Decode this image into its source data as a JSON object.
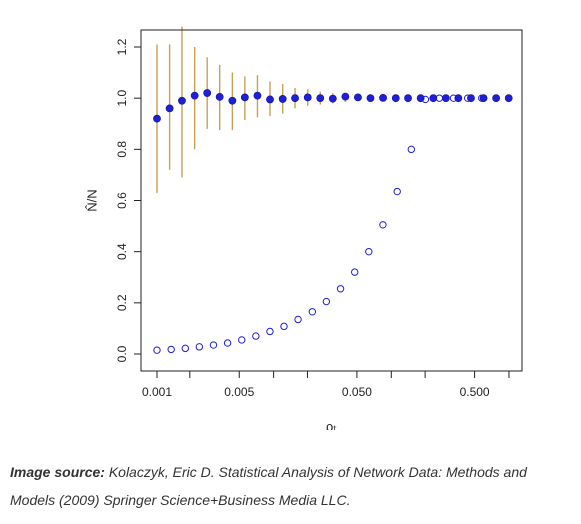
{
  "chart_data": {
    "type": "scatter",
    "title": "",
    "xlabel": "ρₜ",
    "ylabel": "N̂/N",
    "x_scale": "log",
    "xlim": [
      0.001,
      1.0
    ],
    "ylim": [
      0.0,
      1.25
    ],
    "x_ticks": [
      0.001,
      0.005,
      0.05,
      0.5
    ],
    "x_tick_labels": [
      "0.001",
      "0.005",
      "0.050",
      "0.500"
    ],
    "x_minor_ticks": [
      0.0019,
      0.0098,
      0.019,
      0.098,
      0.19,
      0.98
    ],
    "y_ticks": [
      0.0,
      0.2,
      0.4,
      0.6,
      0.8,
      1.0,
      1.2
    ],
    "y_tick_labels": [
      "0.0",
      "0.2",
      "0.4",
      "0.6",
      "0.8",
      "1.0",
      "1.2"
    ],
    "grid": false,
    "legend": "none",
    "colors": {
      "points": "#1f1fd6",
      "error_bars": "#c8a054",
      "axis": "#222222"
    },
    "series": [
      {
        "marker": "filled-circle",
        "x": [
          0.001,
          0.00128,
          0.00163,
          0.00209,
          0.00267,
          0.00341,
          0.00437,
          0.00558,
          0.00714,
          0.00913,
          0.0117,
          0.0149,
          0.0191,
          0.0244,
          0.0312,
          0.0399,
          0.051,
          0.0652,
          0.0834,
          0.107,
          0.136,
          0.174,
          0.223,
          0.285,
          0.364,
          0.466,
          0.596,
          0.762,
          0.975
        ],
        "y": [
          0.92,
          0.96,
          0.99,
          1.01,
          1.02,
          1.005,
          0.99,
          1.003,
          1.01,
          0.995,
          0.997,
          1.0,
          1.003,
          1.0,
          0.998,
          1.006,
          1.003,
          1.0,
          1.001,
          1.0,
          1.0,
          1.0,
          1.0,
          1.0,
          1.0,
          1.0,
          1.0,
          1.0,
          1.0
        ],
        "y_low": [
          0.63,
          0.72,
          0.69,
          0.8,
          0.88,
          0.875,
          0.875,
          0.915,
          0.925,
          0.93,
          0.94,
          0.96,
          0.97,
          0.975,
          0.98,
          0.985,
          0.99,
          0.99,
          0.993,
          0.995,
          0.997,
          0.997,
          0.998,
          0.998,
          0.999,
          0.999,
          1.0,
          1.0,
          1.0
        ],
        "y_high": [
          1.21,
          1.21,
          1.28,
          1.2,
          1.16,
          1.13,
          1.1,
          1.085,
          1.09,
          1.065,
          1.055,
          1.04,
          1.035,
          1.025,
          1.02,
          1.02,
          1.013,
          1.01,
          1.009,
          1.006,
          1.004,
          1.003,
          1.002,
          1.002,
          1.001,
          1.001,
          1.0,
          1.0,
          1.0
        ]
      },
      {
        "marker": "open-circle",
        "x": [
          0.001,
          0.00132,
          0.00174,
          0.00229,
          0.00302,
          0.00398,
          0.00525,
          0.00692,
          0.00912,
          0.012,
          0.0158,
          0.0209,
          0.0275,
          0.0363,
          0.0479,
          0.0631,
          0.0832,
          0.11,
          0.145,
          0.191,
          0.251,
          0.331,
          0.437,
          0.575
        ],
        "y": [
          0.015,
          0.018,
          0.022,
          0.028,
          0.035,
          0.043,
          0.055,
          0.07,
          0.088,
          0.108,
          0.135,
          0.165,
          0.205,
          0.255,
          0.32,
          0.4,
          0.505,
          0.635,
          0.8,
          0.995,
          1.0,
          1.0,
          1.0,
          1.0
        ]
      }
    ]
  },
  "caption": {
    "label": "Image source:",
    "text": " Kolaczyk, Eric D. Statistical Analysis of Network Data: Methods and Models (2009) Springer Science+Business Media LLC."
  }
}
